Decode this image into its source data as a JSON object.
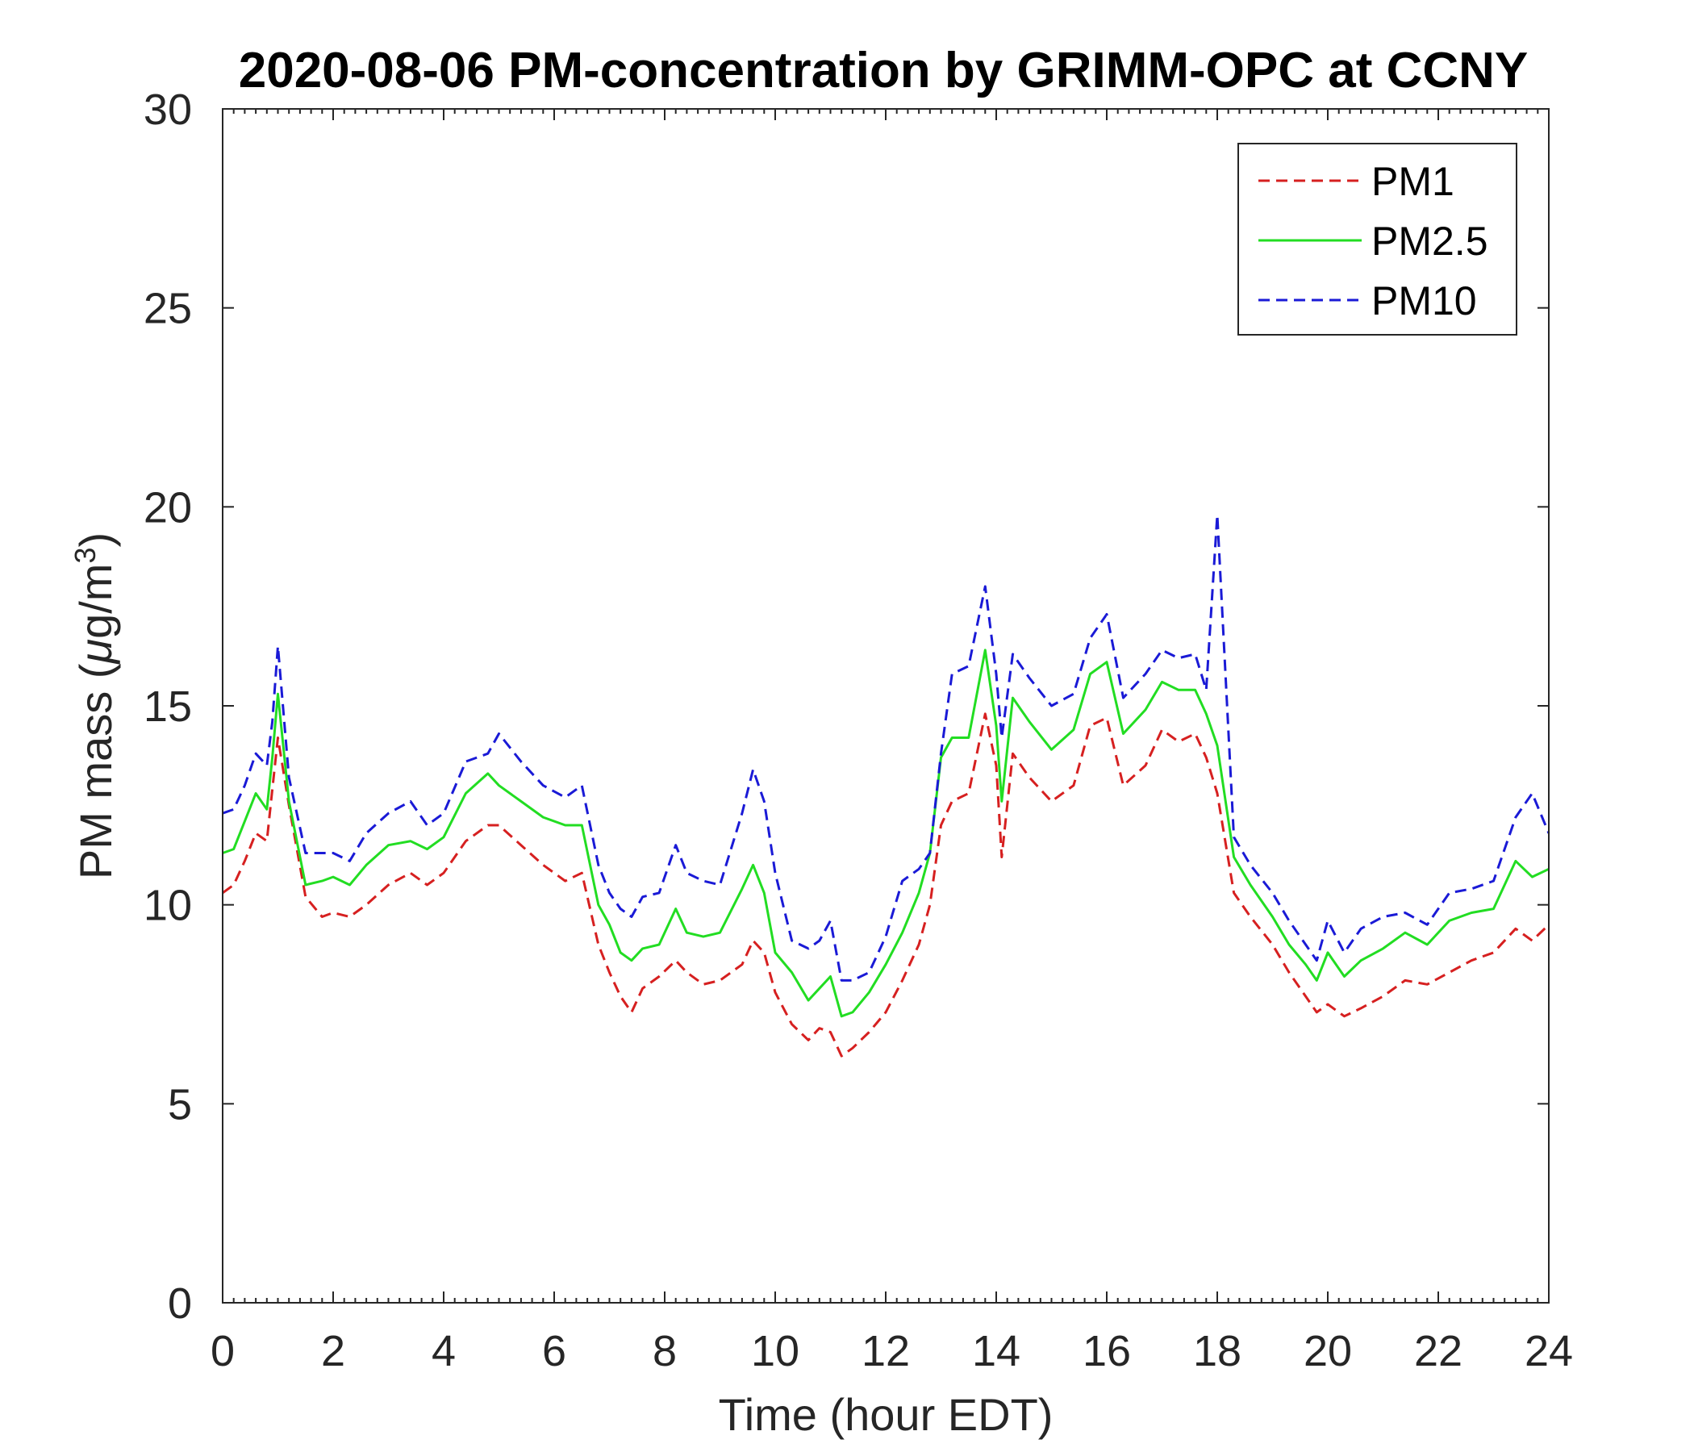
{
  "chart_data": {
    "type": "line",
    "title": "2020-08-06 PM-concentration by GRIMM-OPC at CCNY",
    "xlabel": "Time (hour EDT)",
    "ylabel_prefix": "PM mass (",
    "ylabel_mu": "μ",
    "ylabel_unit": "g/m",
    "ylabel_sup": "3",
    "ylabel_suffix": ")",
    "xlim": [
      0,
      24
    ],
    "ylim": [
      0,
      30
    ],
    "xticks": [
      "0",
      "2",
      "4",
      "6",
      "8",
      "10",
      "12",
      "14",
      "16",
      "18",
      "20",
      "22",
      "24"
    ],
    "yticks": [
      "0",
      "5",
      "10",
      "15",
      "20",
      "25",
      "30"
    ],
    "legend_position": "top-right",
    "series": [
      {
        "name": "PM1",
        "color": "#d62020",
        "style": "dashed",
        "x": [
          0,
          0.2,
          0.4,
          0.6,
          0.8,
          0.9,
          1.0,
          1.2,
          1.5,
          1.8,
          2.0,
          2.3,
          2.6,
          3.0,
          3.4,
          3.7,
          4.0,
          4.4,
          4.8,
          5.0,
          5.4,
          5.8,
          6.2,
          6.5,
          6.8,
          7.0,
          7.2,
          7.4,
          7.6,
          7.9,
          8.2,
          8.4,
          8.7,
          9.0,
          9.4,
          9.6,
          9.8,
          10.0,
          10.3,
          10.6,
          10.8,
          11.0,
          11.2,
          11.4,
          11.7,
          12.0,
          12.3,
          12.6,
          12.8,
          13.0,
          13.2,
          13.5,
          13.8,
          14.0,
          14.1,
          14.3,
          14.6,
          15.0,
          15.4,
          15.7,
          16.0,
          16.3,
          16.7,
          17.0,
          17.3,
          17.6,
          17.8,
          18.0,
          18.3,
          18.6,
          19.0,
          19.3,
          19.6,
          19.8,
          20.0,
          20.3,
          20.6,
          21.0,
          21.4,
          21.8,
          22.2,
          22.6,
          23.0,
          23.4,
          23.7,
          24.0
        ],
        "y": [
          10.3,
          10.5,
          11.1,
          11.8,
          11.6,
          12.9,
          14.2,
          12.5,
          10.2,
          9.7,
          9.8,
          9.7,
          10.0,
          10.5,
          10.8,
          10.5,
          10.8,
          11.6,
          12.0,
          12.0,
          11.5,
          11.0,
          10.6,
          10.8,
          9.0,
          8.3,
          7.7,
          7.3,
          7.9,
          8.2,
          8.6,
          8.3,
          8.0,
          8.1,
          8.5,
          9.1,
          8.8,
          7.8,
          7.0,
          6.6,
          6.9,
          6.8,
          6.2,
          6.4,
          6.8,
          7.3,
          8.1,
          9.0,
          10.0,
          12.0,
          12.6,
          12.8,
          14.8,
          13.5,
          11.2,
          13.8,
          13.2,
          12.6,
          13.0,
          14.5,
          14.7,
          13.0,
          13.5,
          14.4,
          14.1,
          14.3,
          13.7,
          12.8,
          10.3,
          9.7,
          9.0,
          8.3,
          7.7,
          7.3,
          7.5,
          7.2,
          7.4,
          7.7,
          8.1,
          8.0,
          8.3,
          8.6,
          8.8,
          9.4,
          9.1,
          9.5
        ]
      },
      {
        "name": "PM2.5",
        "color": "#22dd22",
        "style": "solid",
        "x": [
          0,
          0.2,
          0.4,
          0.6,
          0.8,
          0.9,
          1.0,
          1.2,
          1.5,
          1.8,
          2.0,
          2.3,
          2.6,
          3.0,
          3.4,
          3.7,
          4.0,
          4.4,
          4.8,
          5.0,
          5.4,
          5.8,
          6.2,
          6.5,
          6.8,
          7.0,
          7.2,
          7.4,
          7.6,
          7.9,
          8.2,
          8.4,
          8.7,
          9.0,
          9.4,
          9.6,
          9.8,
          10.0,
          10.3,
          10.6,
          10.8,
          11.0,
          11.2,
          11.4,
          11.7,
          12.0,
          12.3,
          12.6,
          12.8,
          13.0,
          13.2,
          13.5,
          13.8,
          14.0,
          14.1,
          14.3,
          14.6,
          15.0,
          15.4,
          15.7,
          16.0,
          16.3,
          16.7,
          17.0,
          17.3,
          17.6,
          17.8,
          18.0,
          18.3,
          18.6,
          19.0,
          19.3,
          19.6,
          19.8,
          20.0,
          20.3,
          20.6,
          21.0,
          21.4,
          21.8,
          22.2,
          22.6,
          23.0,
          23.4,
          23.7,
          24.0
        ],
        "y": [
          11.3,
          11.4,
          12.1,
          12.8,
          12.4,
          13.7,
          15.3,
          12.6,
          10.5,
          10.6,
          10.7,
          10.5,
          11.0,
          11.5,
          11.6,
          11.4,
          11.7,
          12.8,
          13.3,
          13.0,
          12.6,
          12.2,
          12.0,
          12.0,
          10.0,
          9.5,
          8.8,
          8.6,
          8.9,
          9.0,
          9.9,
          9.3,
          9.2,
          9.3,
          10.4,
          11.0,
          10.3,
          8.8,
          8.3,
          7.6,
          7.9,
          8.2,
          7.2,
          7.3,
          7.8,
          8.5,
          9.3,
          10.3,
          11.3,
          13.7,
          14.2,
          14.2,
          16.4,
          14.5,
          12.6,
          15.2,
          14.6,
          13.9,
          14.4,
          15.8,
          16.1,
          14.3,
          14.9,
          15.6,
          15.4,
          15.4,
          14.8,
          14.0,
          11.2,
          10.5,
          9.7,
          9.0,
          8.5,
          8.1,
          8.8,
          8.2,
          8.6,
          8.9,
          9.3,
          9.0,
          9.6,
          9.8,
          9.9,
          11.1,
          10.7,
          10.9
        ]
      },
      {
        "name": "PM10",
        "color": "#1a1ad6",
        "style": "dashed",
        "x": [
          0,
          0.2,
          0.4,
          0.6,
          0.8,
          0.9,
          1.0,
          1.2,
          1.5,
          1.8,
          2.0,
          2.3,
          2.6,
          3.0,
          3.4,
          3.7,
          4.0,
          4.4,
          4.8,
          5.0,
          5.4,
          5.8,
          6.2,
          6.5,
          6.8,
          7.0,
          7.2,
          7.4,
          7.6,
          7.9,
          8.2,
          8.4,
          8.7,
          9.0,
          9.4,
          9.6,
          9.8,
          10.0,
          10.3,
          10.6,
          10.8,
          11.0,
          11.2,
          11.4,
          11.7,
          12.0,
          12.3,
          12.6,
          12.8,
          13.0,
          13.2,
          13.5,
          13.8,
          14.0,
          14.1,
          14.3,
          14.6,
          15.0,
          15.4,
          15.7,
          16.0,
          16.3,
          16.7,
          17.0,
          17.3,
          17.6,
          17.8,
          18.0,
          18.3,
          18.6,
          19.0,
          19.3,
          19.6,
          19.8,
          20.0,
          20.3,
          20.6,
          21.0,
          21.4,
          21.8,
          22.2,
          22.6,
          23.0,
          23.4,
          23.7,
          24.0
        ],
        "y": [
          12.3,
          12.4,
          13.0,
          13.8,
          13.5,
          14.6,
          16.5,
          13.2,
          11.3,
          11.3,
          11.3,
          11.1,
          11.8,
          12.3,
          12.6,
          12.0,
          12.3,
          13.6,
          13.8,
          14.3,
          13.6,
          13.0,
          12.7,
          13.0,
          11.0,
          10.3,
          9.9,
          9.7,
          10.2,
          10.3,
          11.5,
          10.8,
          10.6,
          10.5,
          12.3,
          13.4,
          12.6,
          10.8,
          9.1,
          8.9,
          9.1,
          9.6,
          8.1,
          8.1,
          8.3,
          9.2,
          10.6,
          10.9,
          11.3,
          13.8,
          15.8,
          16.0,
          18.0,
          15.8,
          14.2,
          16.3,
          15.7,
          15.0,
          15.3,
          16.7,
          17.3,
          15.2,
          15.8,
          16.4,
          16.2,
          16.3,
          15.4,
          19.8,
          11.7,
          11.0,
          10.3,
          9.6,
          9.0,
          8.6,
          9.6,
          8.8,
          9.4,
          9.7,
          9.8,
          9.5,
          10.3,
          10.4,
          10.6,
          12.2,
          12.8,
          11.8
        ]
      }
    ]
  }
}
